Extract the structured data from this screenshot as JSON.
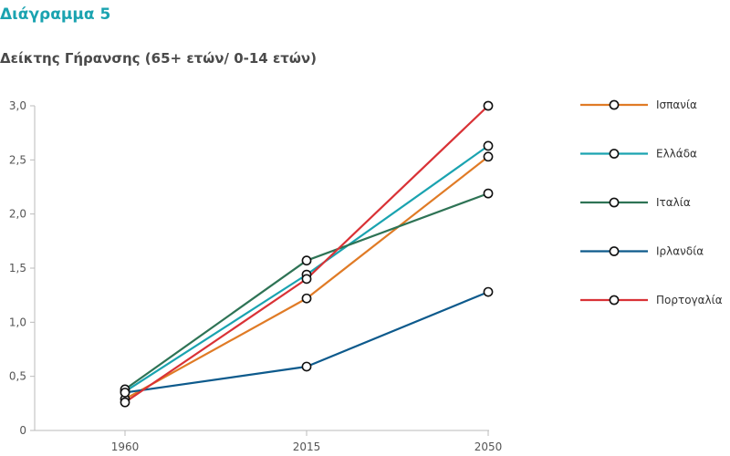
{
  "header": {
    "diagram_label": "Διάγραμμα 5"
  },
  "chart_data": {
    "type": "line",
    "title": "Δείκτης Γήρανσης (65+ ετών/ 0-14 ετών)",
    "xlabel": "",
    "ylabel": "",
    "categories": [
      "1960",
      "2015",
      "2050"
    ],
    "ylim": [
      0,
      3
    ],
    "y_ticks": [
      "0",
      "0,5",
      "1,0",
      "1,5",
      "2,0",
      "2,5",
      "3,0"
    ],
    "y_tick_values": [
      0,
      0.5,
      1.0,
      1.5,
      2.0,
      2.5,
      3.0
    ],
    "grid": false,
    "legend_position": "right",
    "series": [
      {
        "name": "Ισπανία",
        "color": "#e07b26",
        "values": [
          0.29,
          1.22,
          2.53
        ]
      },
      {
        "name": "Ελλάδα",
        "color": "#1aa3b0",
        "values": [
          0.36,
          1.44,
          2.63
        ]
      },
      {
        "name": "Ιταλία",
        "color": "#2e7355",
        "values": [
          0.38,
          1.57,
          2.19
        ]
      },
      {
        "name": "Ιρλανδία",
        "color": "#0d5a8c",
        "values": [
          0.35,
          0.59,
          1.28
        ]
      },
      {
        "name": "Πορτογαλία",
        "color": "#d93236",
        "values": [
          0.26,
          1.4,
          3.0
        ]
      }
    ]
  }
}
